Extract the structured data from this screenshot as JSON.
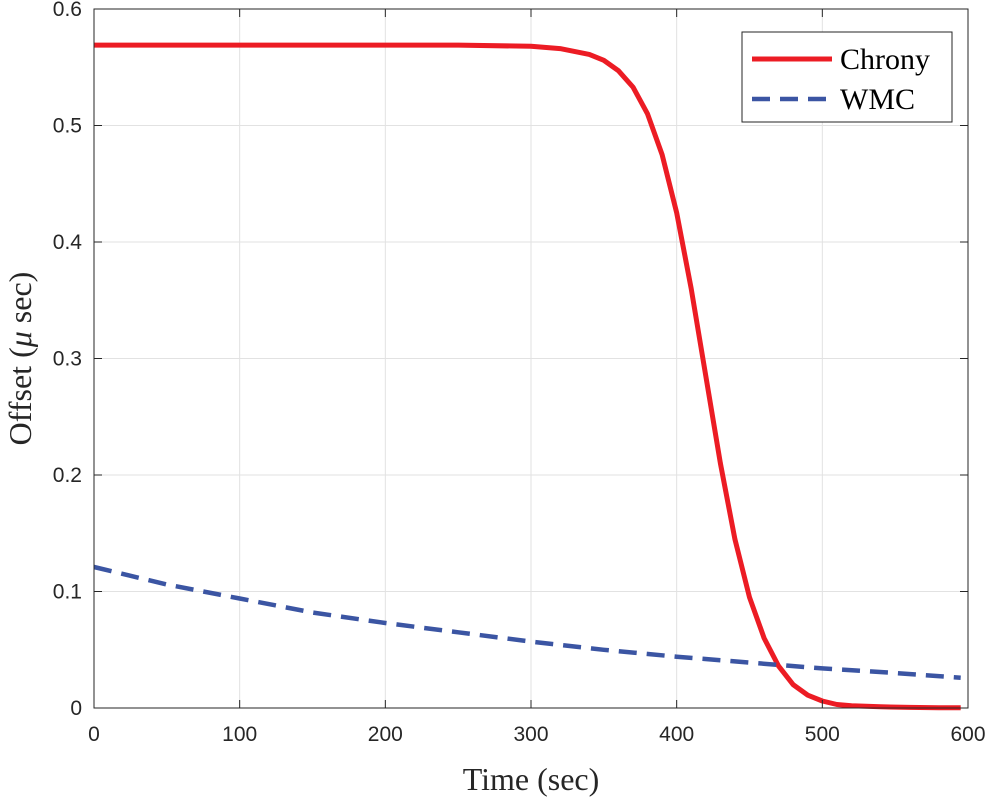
{
  "chart_data": {
    "type": "line",
    "title": "",
    "xlabel": "Time (sec)",
    "ylabel_prefix": "Offset (",
    "ylabel_symbol": "μ",
    "ylabel_suffix": " sec)",
    "xlim": [
      0,
      600
    ],
    "ylim": [
      0,
      0.6
    ],
    "xticks": [
      0,
      100,
      200,
      300,
      400,
      500,
      600
    ],
    "xtick_labels": [
      "0",
      "100",
      "200",
      "300",
      "400",
      "500",
      "600"
    ],
    "yticks": [
      0,
      0.1,
      0.2,
      0.3,
      0.4,
      0.5,
      0.6
    ],
    "ytick_labels": [
      "0",
      "0.1",
      "0.2",
      "0.3",
      "0.4",
      "0.5",
      "0.6"
    ],
    "grid": true,
    "legend_position": "top-right",
    "series": [
      {
        "name": "Chrony",
        "color": "#ec1c24",
        "style": "solid",
        "x": [
          0,
          50,
          100,
          150,
          200,
          250,
          300,
          320,
          340,
          350,
          360,
          370,
          380,
          390,
          400,
          410,
          420,
          430,
          440,
          450,
          460,
          470,
          480,
          490,
          500,
          510,
          520,
          540,
          560,
          580,
          595
        ],
        "y": [
          0.569,
          0.569,
          0.569,
          0.569,
          0.569,
          0.569,
          0.568,
          0.566,
          0.561,
          0.556,
          0.547,
          0.533,
          0.51,
          0.475,
          0.425,
          0.36,
          0.285,
          0.21,
          0.145,
          0.095,
          0.06,
          0.036,
          0.02,
          0.011,
          0.006,
          0.003,
          0.002,
          0.001,
          0.0005,
          0.0003,
          0.0002
        ]
      },
      {
        "name": "WMC",
        "color": "#3b55a3",
        "style": "dashed",
        "x": [
          0,
          50,
          100,
          150,
          200,
          250,
          300,
          350,
          400,
          450,
          500,
          550,
          595
        ],
        "y": [
          0.121,
          0.106,
          0.094,
          0.082,
          0.073,
          0.065,
          0.057,
          0.05,
          0.044,
          0.039,
          0.034,
          0.03,
          0.026
        ]
      }
    ]
  }
}
